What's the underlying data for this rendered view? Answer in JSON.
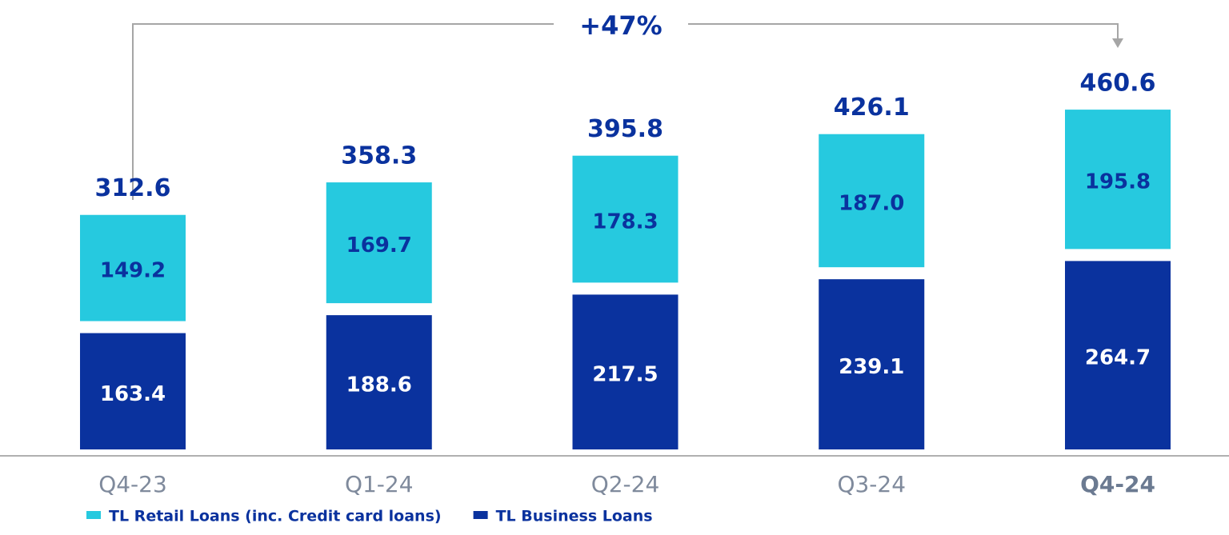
{
  "chart_data": {
    "type": "bar",
    "stacked": true,
    "annotation": "+47%",
    "categories": [
      "Q4-23",
      "Q1-24",
      "Q2-24",
      "Q3-24",
      "Q4-24"
    ],
    "series": [
      {
        "name": "TL Business Loans",
        "color": "#0a329e",
        "values": [
          163.4,
          188.6,
          217.5,
          239.1,
          264.7
        ]
      },
      {
        "name": "TL Retail Loans (inc. Credit card loans)",
        "color": "#26c9df",
        "values": [
          149.2,
          169.7,
          178.3,
          187.0,
          195.8
        ],
        "value_labels": [
          "149.2",
          "169.7",
          "178.3",
          "187.0",
          "195.8"
        ]
      }
    ],
    "totals": [
      312.6,
      358.3,
      395.8,
      426.1,
      460.6
    ]
  }
}
